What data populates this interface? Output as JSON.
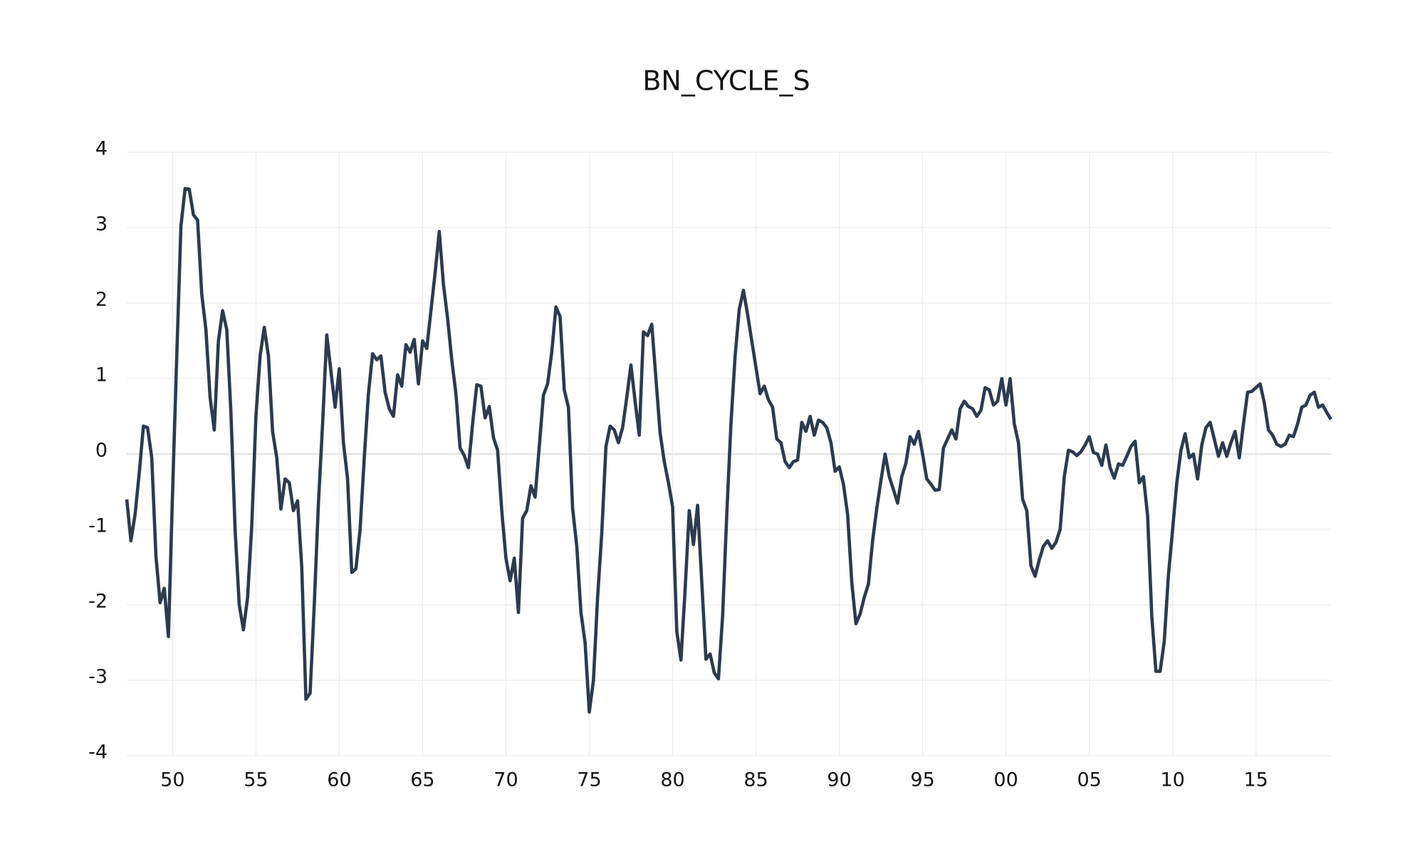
{
  "chart_data": {
    "type": "line",
    "title": "BN_CYCLE_S",
    "color": "#2d3a4f",
    "grid": true,
    "x": [
      1947.25,
      1947.5,
      1947.75,
      1948,
      1948.25,
      1948.5,
      1948.75,
      1949,
      1949.25,
      1949.5,
      1949.75,
      1950,
      1950.25,
      1950.5,
      1950.75,
      1951,
      1951.25,
      1951.5,
      1951.75,
      1952,
      1952.25,
      1952.5,
      1952.75,
      1953,
      1953.25,
      1953.5,
      1953.75,
      1954,
      1954.25,
      1954.5,
      1954.75,
      1955,
      1955.25,
      1955.5,
      1955.75,
      1956,
      1956.25,
      1956.5,
      1956.75,
      1957,
      1957.25,
      1957.5,
      1957.75,
      1958,
      1958.25,
      1958.5,
      1958.75,
      1959,
      1959.25,
      1959.5,
      1959.75,
      1960,
      1960.25,
      1960.5,
      1960.75,
      1961,
      1961.25,
      1961.5,
      1961.75,
      1962,
      1962.25,
      1962.5,
      1962.75,
      1963,
      1963.25,
      1963.5,
      1963.75,
      1964,
      1964.25,
      1964.5,
      1964.75,
      1965,
      1965.25,
      1965.5,
      1965.75,
      1966,
      1966.25,
      1966.5,
      1966.75,
      1967,
      1967.25,
      1967.5,
      1967.75,
      1968,
      1968.25,
      1968.5,
      1968.75,
      1969,
      1969.25,
      1969.5,
      1969.75,
      1970,
      1970.25,
      1970.5,
      1970.75,
      1971,
      1971.25,
      1971.5,
      1971.75,
      1972,
      1972.25,
      1972.5,
      1972.75,
      1973,
      1973.25,
      1973.5,
      1973.75,
      1974,
      1974.25,
      1974.5,
      1974.75,
      1975,
      1975.25,
      1975.5,
      1975.75,
      1976,
      1976.25,
      1976.5,
      1976.75,
      1977,
      1977.25,
      1977.5,
      1977.75,
      1978,
      1978.25,
      1978.5,
      1978.75,
      1979,
      1979.25,
      1979.5,
      1979.75,
      1980,
      1980.25,
      1980.5,
      1980.75,
      1981,
      1981.25,
      1981.5,
      1981.75,
      1982,
      1982.25,
      1982.5,
      1982.75,
      1983,
      1983.25,
      1983.5,
      1983.75,
      1984,
      1984.25,
      1984.5,
      1984.75,
      1985,
      1985.25,
      1985.5,
      1985.75,
      1986,
      1986.25,
      1986.5,
      1986.75,
      1987,
      1987.25,
      1987.5,
      1987.75,
      1988,
      1988.25,
      1988.5,
      1988.75,
      1989,
      1989.25,
      1989.5,
      1989.75,
      1990,
      1990.25,
      1990.5,
      1990.75,
      1991,
      1991.25,
      1991.5,
      1991.75,
      1992,
      1992.25,
      1992.5,
      1992.75,
      1993,
      1993.25,
      1993.5,
      1993.75,
      1994,
      1994.25,
      1994.5,
      1994.75,
      1995,
      1995.25,
      1995.5,
      1995.75,
      1996,
      1996.25,
      1996.5,
      1996.75,
      1997,
      1997.25,
      1997.5,
      1997.75,
      1998,
      1998.25,
      1998.5,
      1998.75,
      1999,
      1999.25,
      1999.5,
      1999.75,
      2000,
      2000.25,
      2000.5,
      2000.75,
      2001,
      2001.25,
      2001.5,
      2001.75,
      2002,
      2002.25,
      2002.5,
      2002.75,
      2003,
      2003.25,
      2003.5,
      2003.75,
      2004,
      2004.25,
      2004.5,
      2004.75,
      2005,
      2005.25,
      2005.5,
      2005.75,
      2006,
      2006.25,
      2006.5,
      2006.75,
      2007,
      2007.25,
      2007.5,
      2007.75,
      2008,
      2008.25,
      2008.5,
      2008.75,
      2009,
      2009.25,
      2009.5,
      2009.75,
      2010,
      2010.25,
      2010.5,
      2010.75,
      2011,
      2011.25,
      2011.5,
      2011.75,
      2012,
      2012.25,
      2012.5,
      2012.75,
      2013,
      2013.25,
      2013.5,
      2013.75,
      2014,
      2014.25,
      2014.5,
      2014.75,
      2015,
      2015.25,
      2015.5,
      2015.75,
      2016,
      2016.25,
      2016.5,
      2016.75,
      2017,
      2017.25,
      2017.5,
      2017.75,
      2018,
      2018.25,
      2018.5,
      2018.75,
      2019,
      2019.25,
      2019.5
    ],
    "values": [
      -0.6,
      -1.15,
      -0.8,
      -0.25,
      0.37,
      0.35,
      -0.05,
      -1.35,
      -1.97,
      -1.78,
      -2.42,
      -0.5,
      1.3,
      3.02,
      3.52,
      3.51,
      3.17,
      3.1,
      2.12,
      1.65,
      0.75,
      0.32,
      1.5,
      1.9,
      1.65,
      0.55,
      -1.0,
      -2.0,
      -2.33,
      -1.9,
      -0.95,
      0.5,
      1.3,
      1.68,
      1.3,
      0.3,
      -0.05,
      -0.73,
      -0.33,
      -0.38,
      -0.75,
      -0.62,
      -1.5,
      -3.25,
      -3.17,
      -2.0,
      -0.65,
      0.4,
      1.58,
      1.1,
      0.62,
      1.13,
      0.15,
      -0.33,
      -1.57,
      -1.52,
      -1.0,
      -0.05,
      0.8,
      1.33,
      1.25,
      1.3,
      0.82,
      0.6,
      0.5,
      1.05,
      0.9,
      1.45,
      1.35,
      1.52,
      0.93,
      1.5,
      1.4,
      1.9,
      2.4,
      2.95,
      2.25,
      1.8,
      1.25,
      0.8,
      0.08,
      -0.02,
      -0.18,
      0.4,
      0.92,
      0.9,
      0.48,
      0.63,
      0.22,
      0.05,
      -0.75,
      -1.38,
      -1.68,
      -1.38,
      -2.1,
      -0.85,
      -0.75,
      -0.42,
      -0.57,
      0.1,
      0.78,
      0.93,
      1.35,
      1.95,
      1.82,
      0.85,
      0.62,
      -0.72,
      -1.22,
      -2.1,
      -2.5,
      -3.42,
      -3.0,
      -1.9,
      -1.05,
      0.1,
      0.37,
      0.32,
      0.15,
      0.35,
      0.75,
      1.18,
      0.7,
      0.25,
      1.62,
      1.57,
      1.72,
      1.0,
      0.28,
      -0.1,
      -0.38,
      -0.7,
      -2.35,
      -2.73,
      -1.8,
      -0.75,
      -1.2,
      -0.68,
      -1.7,
      -2.72,
      -2.65,
      -2.9,
      -2.98,
      -2.15,
      -0.8,
      0.4,
      1.3,
      1.92,
      2.17,
      1.85,
      1.5,
      1.15,
      0.8,
      0.9,
      0.72,
      0.62,
      0.2,
      0.15,
      -0.1,
      -0.18,
      -0.1,
      -0.08,
      0.42,
      0.3,
      0.5,
      0.25,
      0.45,
      0.42,
      0.35,
      0.15,
      -0.23,
      -0.17,
      -0.4,
      -0.8,
      -1.7,
      -2.25,
      -2.12,
      -1.9,
      -1.72,
      -1.15,
      -0.72,
      -0.35,
      0.0,
      -0.3,
      -0.47,
      -0.65,
      -0.3,
      -0.12,
      0.23,
      0.13,
      0.3,
      0.0,
      -0.33,
      -0.4,
      -0.48,
      -0.47,
      0.08,
      0.2,
      0.32,
      0.2,
      0.6,
      0.7,
      0.63,
      0.6,
      0.5,
      0.58,
      0.88,
      0.85,
      0.65,
      0.7,
      1.0,
      0.65,
      1.0,
      0.4,
      0.15,
      -0.6,
      -0.75,
      -1.48,
      -1.62,
      -1.4,
      -1.22,
      -1.15,
      -1.25,
      -1.17,
      -1.0,
      -0.3,
      0.05,
      0.03,
      -0.02,
      0.03,
      0.12,
      0.23,
      0.02,
      0.0,
      -0.15,
      0.12,
      -0.18,
      -0.32,
      -0.13,
      -0.15,
      -0.03,
      0.1,
      0.17,
      -0.38,
      -0.3,
      -0.82,
      -2.15,
      -2.88,
      -2.88,
      -2.48,
      -1.6,
      -1.0,
      -0.38,
      0.05,
      0.27,
      -0.05,
      0.0,
      -0.33,
      0.12,
      0.35,
      0.42,
      0.2,
      -0.03,
      0.15,
      -0.03,
      0.15,
      0.3,
      -0.05,
      0.4,
      0.82,
      0.83,
      0.88,
      0.93,
      0.68,
      0.32,
      0.25,
      0.13,
      0.1,
      0.13,
      0.25,
      0.23,
      0.4,
      0.62,
      0.65,
      0.78,
      0.82,
      0.62,
      0.65,
      0.55,
      0.46
    ],
    "xlim": [
      1947.25,
      2019.5
    ],
    "xticks": [
      {
        "value": 1950,
        "label": "50"
      },
      {
        "value": 1955,
        "label": "55"
      },
      {
        "value": 1960,
        "label": "60"
      },
      {
        "value": 1965,
        "label": "65"
      },
      {
        "value": 1970,
        "label": "70"
      },
      {
        "value": 1975,
        "label": "75"
      },
      {
        "value": 1980,
        "label": "80"
      },
      {
        "value": 1985,
        "label": "85"
      },
      {
        "value": 1990,
        "label": "90"
      },
      {
        "value": 1995,
        "label": "95"
      },
      {
        "value": 2000,
        "label": "00"
      },
      {
        "value": 2005,
        "label": "05"
      },
      {
        "value": 2010,
        "label": "10"
      },
      {
        "value": 2015,
        "label": "15"
      }
    ],
    "ylim": [
      -4,
      4
    ],
    "yticks": [
      -4,
      -3,
      -2,
      -1,
      0,
      1,
      2,
      3,
      4
    ]
  }
}
